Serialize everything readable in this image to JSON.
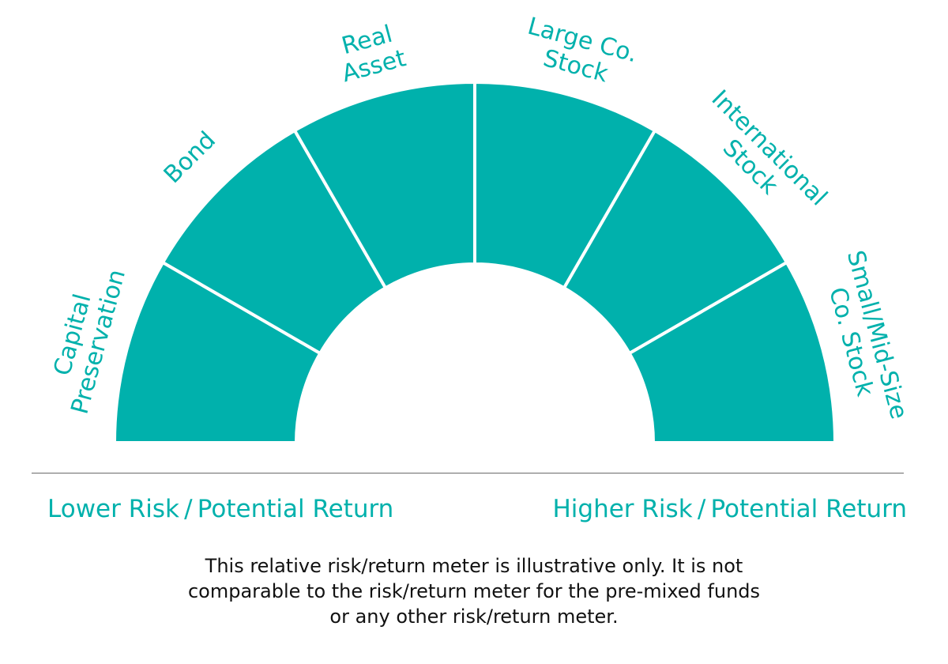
{
  "colors": {
    "accent": "#00b1ac",
    "text": "#111111",
    "divider": "#6a6a6a"
  },
  "meter": {
    "segments": [
      {
        "lines": [
          "Capital",
          "Preservation"
        ]
      },
      {
        "lines": [
          "Bond"
        ]
      },
      {
        "lines": [
          "Real",
          "Asset"
        ]
      },
      {
        "lines": [
          "Large Co.",
          "Stock"
        ]
      },
      {
        "lines": [
          "International",
          "Stock"
        ]
      },
      {
        "lines": [
          "Small/Mid-Size",
          "Co. Stock"
        ]
      }
    ]
  },
  "scale": {
    "lower": "Lower Risk / Potential Return",
    "higher": "Higher Risk / Potential Return"
  },
  "disclaimer": {
    "lines": [
      "This relative risk/return meter is illustrative only. It is not",
      "comparable to the risk/return meter for the pre-mixed funds",
      "or any other risk/return meter."
    ]
  }
}
